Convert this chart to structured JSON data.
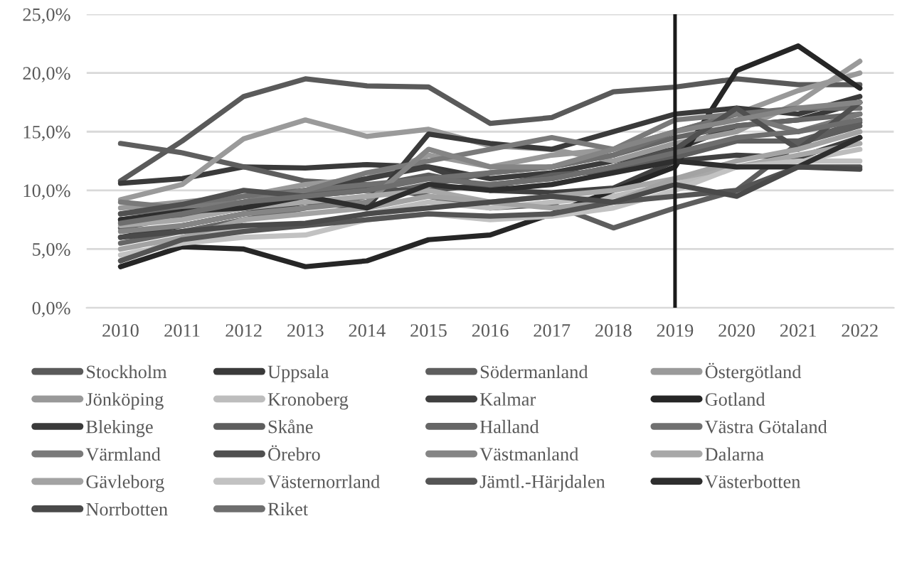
{
  "chart_data": {
    "type": "line",
    "x": [
      2010,
      2011,
      2012,
      2013,
      2014,
      2015,
      2016,
      2017,
      2018,
      2019,
      2020,
      2021,
      2022
    ],
    "xlim": [
      2009.45,
      2022.55
    ],
    "xticks": [
      2010,
      2011,
      2012,
      2013,
      2014,
      2015,
      2016,
      2017,
      2018,
      2019,
      2020,
      2021,
      2022
    ],
    "ylim": [
      0,
      25
    ],
    "yticks": [
      {
        "value": 0,
        "label": "0,0%"
      },
      {
        "value": 5,
        "label": "5,0%"
      },
      {
        "value": 10,
        "label": "10,0%"
      },
      {
        "value": 15,
        "label": "15,0%"
      },
      {
        "value": 20,
        "label": "20,0%"
      },
      {
        "value": 25,
        "label": "25,0%"
      }
    ],
    "grid": "y",
    "legend": "bottom",
    "marker": "none",
    "line_style": "solid",
    "ref_lines": [
      {
        "axis": "x",
        "value": 2019,
        "color": "#1a1a1a",
        "line_style": "solid"
      }
    ],
    "series": [
      {
        "name": "Stockholm",
        "color": "#5a5a5a",
        "values": [
          10.8,
          14.2,
          18.0,
          19.5,
          18.9,
          18.8,
          15.7,
          16.2,
          18.4,
          18.8,
          19.5,
          19.0,
          19.0
        ]
      },
      {
        "name": "Uppsala",
        "color": "#3a3a3a",
        "values": [
          10.6,
          11.0,
          12.0,
          11.9,
          12.2,
          12.0,
          11.0,
          11.5,
          12.5,
          13.5,
          15.5,
          16.0,
          17.5
        ]
      },
      {
        "name": "Södermanland",
        "color": "#5e5e5e",
        "values": [
          14.0,
          13.2,
          12.0,
          10.8,
          10.5,
          9.5,
          8.5,
          8.8,
          6.8,
          8.5,
          10.0,
          14.0,
          15.5
        ]
      },
      {
        "name": "Östergötland",
        "color": "#9a9a9a",
        "values": [
          9.2,
          10.5,
          14.4,
          16.0,
          14.6,
          15.2,
          13.8,
          13.5,
          12.5,
          14.0,
          15.0,
          17.5,
          21.0
        ]
      },
      {
        "name": "Jönköping",
        "color": "#999999",
        "values": [
          8.5,
          9.0,
          9.5,
          10.5,
          11.0,
          13.0,
          12.0,
          13.0,
          13.5,
          15.0,
          16.5,
          18.5,
          20.0
        ]
      },
      {
        "name": "Kronoberg",
        "color": "#bdbdbd",
        "values": [
          4.0,
          6.0,
          6.8,
          7.0,
          8.0,
          9.0,
          8.5,
          9.0,
          9.5,
          10.5,
          12.0,
          12.5,
          13.5
        ]
      },
      {
        "name": "Kalmar",
        "color": "#404040",
        "values": [
          7.5,
          8.0,
          9.0,
          10.0,
          11.0,
          12.0,
          10.0,
          9.8,
          10.2,
          12.5,
          13.0,
          12.8,
          14.5
        ]
      },
      {
        "name": "Gotland",
        "color": "#262626",
        "values": [
          3.5,
          5.2,
          5.0,
          3.5,
          4.0,
          5.8,
          6.2,
          8.0,
          10.0,
          12.0,
          20.2,
          22.3,
          18.7
        ]
      },
      {
        "name": "Blekinge",
        "color": "#3a3a3a",
        "values": [
          6.0,
          7.0,
          8.0,
          9.0,
          8.5,
          14.8,
          14.0,
          13.5,
          15.0,
          16.5,
          17.0,
          16.5,
          18.0
        ]
      },
      {
        "name": "Skåne",
        "color": "#5e5e5e",
        "values": [
          6.8,
          7.8,
          8.8,
          9.7,
          10.3,
          11.3,
          10.3,
          11.3,
          11.7,
          12.8,
          14.2,
          14.2,
          15.8
        ]
      },
      {
        "name": "Halland",
        "color": "#666666",
        "values": [
          5.5,
          6.5,
          7.5,
          8.5,
          9.5,
          10.5,
          11.5,
          12.0,
          13.0,
          14.5,
          15.5,
          16.0,
          16.5
        ]
      },
      {
        "name": "Västra Götaland",
        "color": "#707070",
        "values": [
          8.0,
          8.5,
          9.5,
          10.0,
          10.5,
          11.0,
          11.5,
          12.0,
          13.0,
          15.0,
          16.5,
          17.0,
          17.0
        ]
      },
      {
        "name": "Värmland",
        "color": "#7a7a7a",
        "values": [
          9.0,
          8.5,
          9.0,
          10.0,
          11.5,
          12.5,
          13.5,
          14.5,
          13.5,
          16.0,
          16.5,
          15.0,
          16.5
        ]
      },
      {
        "name": "Örebro",
        "color": "#505050",
        "values": [
          8.0,
          8.8,
          10.0,
          9.5,
          10.0,
          10.0,
          10.5,
          11.0,
          12.0,
          13.5,
          17.0,
          13.5,
          17.5
        ]
      },
      {
        "name": "Västmanland",
        "color": "#858585",
        "values": [
          6.5,
          7.0,
          8.0,
          8.5,
          9.0,
          13.5,
          12.0,
          12.0,
          13.5,
          15.0,
          16.0,
          17.0,
          17.5
        ]
      },
      {
        "name": "Dalarna",
        "color": "#a8a8a8",
        "values": [
          7.0,
          7.5,
          8.5,
          9.0,
          9.5,
          10.0,
          9.0,
          9.5,
          10.0,
          11.0,
          12.0,
          13.0,
          14.0
        ]
      },
      {
        "name": "Gävleborg",
        "color": "#a3a3a3",
        "values": [
          5.0,
          6.0,
          7.5,
          8.0,
          8.5,
          9.5,
          9.0,
          8.5,
          9.0,
          11.0,
          12.5,
          13.5,
          15.0
        ]
      },
      {
        "name": "Västernorrland",
        "color": "#c2c2c2",
        "values": [
          4.5,
          5.5,
          6.0,
          6.2,
          7.5,
          8.0,
          7.5,
          7.8,
          8.5,
          10.0,
          12.0,
          12.5,
          12.5
        ]
      },
      {
        "name": "Jämtl.-Härjdalen",
        "color": "#555555",
        "values": [
          4.0,
          5.8,
          6.5,
          7.0,
          7.5,
          8.0,
          7.8,
          8.0,
          9.0,
          9.5,
          10.0,
          12.0,
          12.0
        ]
      },
      {
        "name": "Västerbotten",
        "color": "#2e2e2e",
        "values": [
          7.5,
          8.2,
          8.5,
          9.5,
          8.5,
          10.5,
          10.0,
          10.5,
          11.5,
          12.5,
          12.0,
          12.0,
          14.5
        ]
      },
      {
        "name": "Norrbotten",
        "color": "#4a4a4a",
        "values": [
          6.0,
          6.5,
          7.0,
          7.2,
          8.0,
          8.5,
          9.0,
          9.5,
          9.0,
          10.5,
          9.5,
          12.0,
          11.8
        ]
      },
      {
        "name": "Riket",
        "color": "#6e6e6e",
        "values": [
          7.2,
          8.0,
          9.0,
          9.5,
          10.0,
          11.0,
          10.5,
          11.0,
          12.0,
          13.2,
          14.5,
          15.0,
          16.0
        ]
      }
    ]
  }
}
